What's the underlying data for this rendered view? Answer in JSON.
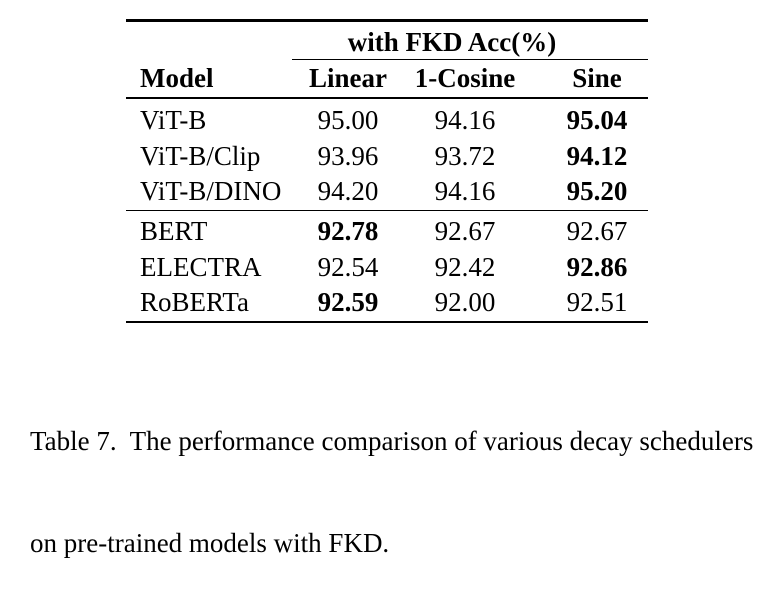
{
  "page": {
    "background": "#ffffff",
    "text_color": "#000000"
  },
  "table": {
    "span_header": "with FKD Acc(%)",
    "columns": [
      "Model",
      "Linear",
      "1-Cosine",
      "Sine"
    ],
    "groups": [
      {
        "rows": [
          {
            "model": "ViT-B",
            "linear": {
              "text": "95.00",
              "bold": false
            },
            "cosine": {
              "text": "94.16",
              "bold": false
            },
            "sine": {
              "text": "95.04",
              "bold": true
            }
          },
          {
            "model": "ViT-B/Clip",
            "linear": {
              "text": "93.96",
              "bold": false
            },
            "cosine": {
              "text": "93.72",
              "bold": false
            },
            "sine": {
              "text": "94.12",
              "bold": true
            }
          },
          {
            "model": "ViT-B/DINO",
            "linear": {
              "text": "94.20",
              "bold": false
            },
            "cosine": {
              "text": "94.16",
              "bold": false
            },
            "sine": {
              "text": "95.20",
              "bold": true
            }
          }
        ]
      },
      {
        "rows": [
          {
            "model": "BERT",
            "linear": {
              "text": "92.78",
              "bold": true
            },
            "cosine": {
              "text": "92.67",
              "bold": false
            },
            "sine": {
              "text": "92.67",
              "bold": false
            }
          },
          {
            "model": "ELECTRA",
            "linear": {
              "text": "92.54",
              "bold": false
            },
            "cosine": {
              "text": "92.42",
              "bold": false
            },
            "sine": {
              "text": "92.86",
              "bold": true
            }
          },
          {
            "model": "RoBERTa",
            "linear": {
              "text": "92.59",
              "bold": true
            },
            "cosine": {
              "text": "92.00",
              "bold": false
            },
            "sine": {
              "text": "92.51",
              "bold": false
            }
          }
        ]
      }
    ]
  },
  "caption": {
    "lines": [
      "Table 7.  The performance comparison of various decay schedulers",
      "on pre-trained models with FKD."
    ]
  }
}
